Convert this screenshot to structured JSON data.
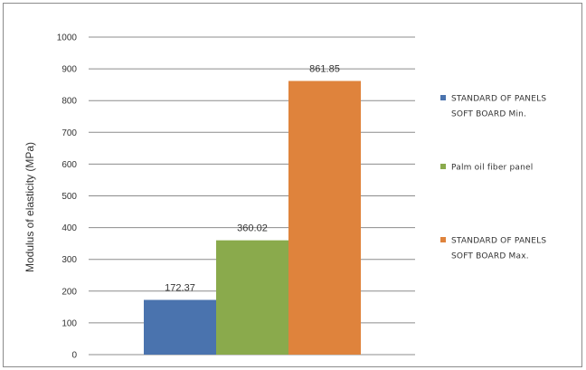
{
  "chart_data": {
    "type": "bar",
    "title": "",
    "xlabel": "",
    "ylabel": "Modulus of elasticity (MPa)",
    "ylim": [
      0,
      1000
    ],
    "yticks": [
      0,
      100,
      200,
      300,
      400,
      500,
      600,
      700,
      800,
      900,
      1000
    ],
    "grid": true,
    "legend_position": "right",
    "series": [
      {
        "label_lines": [
          "STANDARD OF PANELS",
          "SOFT BOARD Min."
        ],
        "value": 172.37,
        "value_label": "172.37",
        "color": "#4a73ae"
      },
      {
        "label_lines": [
          "Palm oil fiber panel"
        ],
        "value": 360.02,
        "value_label": "360.02",
        "color": "#8aaa4c"
      },
      {
        "label_lines": [
          "STANDARD OF PANELS",
          "SOFT BOARD  Max."
        ],
        "value": 861.85,
        "value_label": "861.85",
        "color": "#df833c"
      }
    ]
  }
}
